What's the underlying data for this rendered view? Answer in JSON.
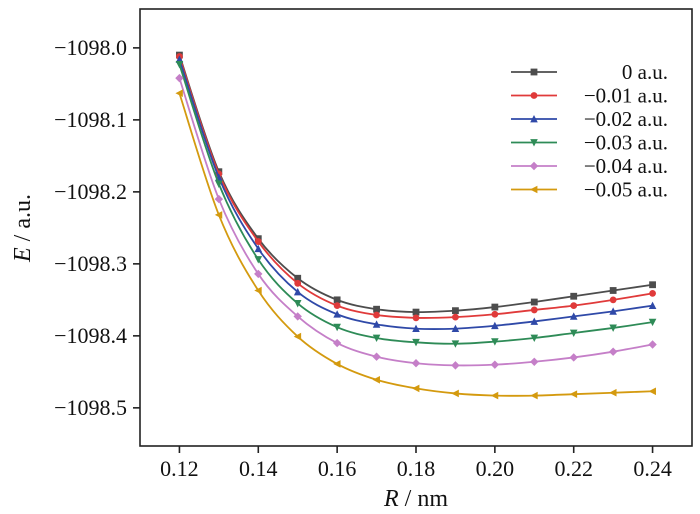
{
  "chart_data": {
    "type": "line",
    "title": "",
    "xlabel": {
      "var": "R",
      "unit": " / nm"
    },
    "ylabel": {
      "var": "E",
      "unit": " / a.u."
    },
    "xlim": [
      0.11,
      0.25
    ],
    "ylim": [
      -1098.553,
      -1097.946
    ],
    "xticks": [
      {
        "v": 0.12,
        "label": "0.12"
      },
      {
        "v": 0.14,
        "label": "0.14"
      },
      {
        "v": 0.16,
        "label": "0.16"
      },
      {
        "v": 0.18,
        "label": "0.18"
      },
      {
        "v": 0.2,
        "label": "0.20"
      },
      {
        "v": 0.22,
        "label": "0.22"
      },
      {
        "v": 0.24,
        "label": "0.24"
      }
    ],
    "yticks": [
      {
        "v": -1098.0,
        "label": "−1098.0"
      },
      {
        "v": -1098.1,
        "label": "−1098.1"
      },
      {
        "v": -1098.2,
        "label": "−1098.2"
      },
      {
        "v": -1098.3,
        "label": "−1098.3"
      },
      {
        "v": -1098.4,
        "label": "−1098.4"
      },
      {
        "v": -1098.5,
        "label": "−1098.5"
      }
    ],
    "grid": false,
    "legend_position": "top-right",
    "x": [
      0.12,
      0.13,
      0.14,
      0.15,
      0.16,
      0.17,
      0.18,
      0.19,
      0.2,
      0.21,
      0.22,
      0.23,
      0.24
    ],
    "series": [
      {
        "name": "0 a.u.",
        "color": "#4d4d4d",
        "marker": "square",
        "values": [
          -1098.01,
          -1098.172,
          -1098.265,
          -1098.32,
          -1098.35,
          -1098.363,
          -1098.367,
          -1098.365,
          -1098.36,
          -1098.353,
          -1098.345,
          -1098.337,
          -1098.329
        ]
      },
      {
        "name": "−0.01 a.u.",
        "color": "#e03a3a",
        "marker": "circle",
        "values": [
          -1098.012,
          -1098.175,
          -1098.269,
          -1098.327,
          -1098.358,
          -1098.371,
          -1098.375,
          -1098.374,
          -1098.37,
          -1098.364,
          -1098.358,
          -1098.35,
          -1098.341
        ]
      },
      {
        "name": "−0.02 a.u.",
        "color": "#2f49a8",
        "marker": "triangle-up",
        "values": [
          -1098.016,
          -1098.18,
          -1098.279,
          -1098.339,
          -1098.37,
          -1098.384,
          -1098.39,
          -1098.39,
          -1098.386,
          -1098.38,
          -1098.373,
          -1098.366,
          -1098.358
        ]
      },
      {
        "name": "−0.03 a.u.",
        "color": "#2e8b57",
        "marker": "triangle-down",
        "values": [
          -1098.023,
          -1098.189,
          -1098.294,
          -1098.355,
          -1098.388,
          -1098.403,
          -1098.409,
          -1098.411,
          -1098.408,
          -1098.403,
          -1098.396,
          -1098.389,
          -1098.381
        ]
      },
      {
        "name": "−0.04 a.u.",
        "color": "#c57fc8",
        "marker": "diamond",
        "values": [
          -1098.042,
          -1098.21,
          -1098.314,
          -1098.373,
          -1098.41,
          -1098.429,
          -1098.438,
          -1098.441,
          -1098.44,
          -1098.436,
          -1098.43,
          -1098.422,
          -1098.412
        ]
      },
      {
        "name": "−0.05 a.u.",
        "color": "#d49a0f",
        "marker": "triangle-left",
        "values": [
          -1098.063,
          -1098.232,
          -1098.337,
          -1098.401,
          -1098.439,
          -1098.461,
          -1098.473,
          -1098.48,
          -1098.483,
          -1098.483,
          -1098.481,
          -1098.479,
          -1098.477
        ]
      }
    ]
  }
}
